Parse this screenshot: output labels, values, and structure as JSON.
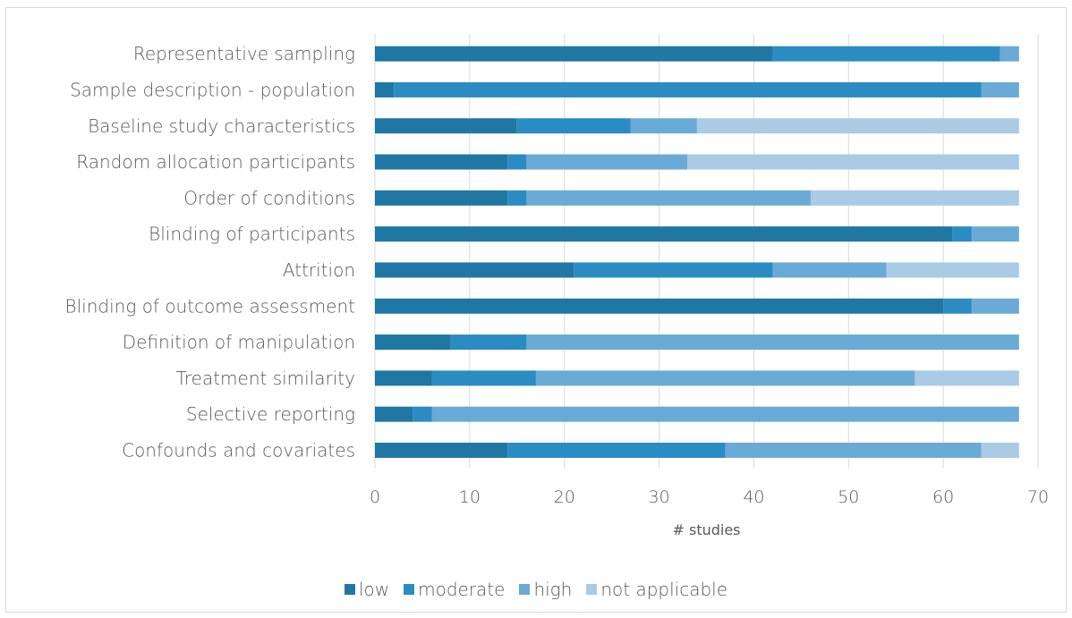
{
  "chart_data": {
    "type": "bar",
    "orientation": "horizontal",
    "stacked": true,
    "categories": [
      "Representative sampling",
      "Sample description - population",
      "Baseline study characteristics",
      "Random allocation participants",
      "Order of conditions",
      "Blinding of participants",
      "Attrition",
      "Blinding of outcome assessment",
      "Definition of manipulation",
      "Treatment similarity",
      "Selective reporting",
      "Confounds and covariates"
    ],
    "series": [
      {
        "name": "low",
        "color": "#1f77a4",
        "values": [
          42,
          2,
          15,
          14,
          14,
          61,
          21,
          60,
          8,
          6,
          4,
          14
        ]
      },
      {
        "name": "moderate",
        "color": "#2b8cc4",
        "values": [
          24,
          62,
          12,
          2,
          2,
          2,
          21,
          3,
          8,
          11,
          2,
          23
        ]
      },
      {
        "name": "high",
        "color": "#6aaad6",
        "values": [
          2,
          4,
          7,
          17,
          30,
          5,
          12,
          5,
          52,
          40,
          62,
          27
        ]
      },
      {
        "name": "not applicable",
        "color": "#a9cbe6",
        "values": [
          0,
          0,
          34,
          35,
          22,
          0,
          14,
          0,
          0,
          11,
          0,
          4
        ]
      }
    ],
    "xlabel": "# studies",
    "ylabel": "",
    "xlim": [
      0,
      70
    ],
    "xticks": [
      "0",
      "10",
      "20",
      "30",
      "40",
      "50",
      "60",
      "70"
    ],
    "grid": true,
    "legend_position": "bottom"
  }
}
